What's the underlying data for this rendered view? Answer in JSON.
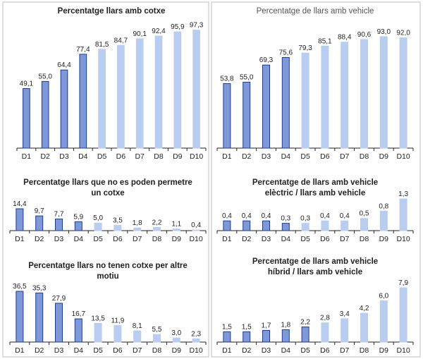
{
  "chart_data": [
    {
      "type": "bar",
      "title_lines": [
        "Percentatge llars amb cotxe"
      ],
      "title_weight": "bold",
      "categories": [
        "D1",
        "D2",
        "D3",
        "D4",
        "D5",
        "D6",
        "D7",
        "D8",
        "D9",
        "D10"
      ],
      "values": [
        49.1,
        55.0,
        64.4,
        77.4,
        81.5,
        84.7,
        90.1,
        92.4,
        95.9,
        97.3
      ],
      "value_labels": [
        "49,1",
        "55,0",
        "64,4",
        "77,4",
        "81,5",
        "84,7",
        "90,1",
        "92,4",
        "95,9",
        "97,3"
      ],
      "highlight_count": 4,
      "ylim": [
        0,
        100
      ]
    },
    {
      "type": "bar",
      "title_lines": [
        "Percentatge de llars amb vehicle"
      ],
      "title_weight": "normal",
      "categories": [
        "D1",
        "D2",
        "D3",
        "D4",
        "D5",
        "D6",
        "D7",
        "D8",
        "D9",
        "D10"
      ],
      "values": [
        53.8,
        55.0,
        69.3,
        75.6,
        79.3,
        85.1,
        88.4,
        90.6,
        93.0,
        92.0
      ],
      "value_labels": [
        "53,8",
        "55,0",
        "69,3",
        "75,6",
        "79,3",
        "85,1",
        "88,4",
        "90,6",
        "93,0",
        "92,0"
      ],
      "highlight_count": 4,
      "ylim": [
        0,
        100
      ]
    },
    {
      "type": "bar",
      "title_lines": [
        "Percentatge llars que no es poden permetre",
        "un cotxe"
      ],
      "title_weight": "bold",
      "categories": [
        "D1",
        "D2",
        "D3",
        "D4",
        "D5",
        "D6",
        "D7",
        "D8",
        "D9",
        "D10"
      ],
      "values": [
        14.4,
        9.7,
        7.7,
        5.9,
        5.0,
        3.5,
        1.8,
        2.2,
        1.1,
        0.4
      ],
      "value_labels": [
        "14,4",
        "9,7",
        "7,7",
        "5,9",
        "5,0",
        "3,5",
        "1,8",
        "2,2",
        "1,1",
        "0,4"
      ],
      "highlight_count": 4,
      "ylim": [
        0,
        14.4
      ]
    },
    {
      "type": "bar",
      "title_lines": [
        "Percentatge de llars amb vehicle",
        "elèctric / llars amb vehicle"
      ],
      "title_weight": "bold",
      "categories": [
        "D1",
        "D2",
        "D3",
        "D4",
        "D5",
        "D6",
        "D7",
        "D8",
        "D9",
        "D10"
      ],
      "values": [
        0.4,
        0.4,
        0.4,
        0.3,
        0.3,
        0.4,
        0.4,
        0.5,
        0.8,
        1.3
      ],
      "value_labels": [
        "0,4",
        "0,4",
        "0,4",
        "0,3",
        "0,3",
        "0,4",
        "0,4",
        "0,5",
        "0,8",
        "1,3"
      ],
      "highlight_count": 4,
      "ylim": [
        0,
        1.3
      ]
    },
    {
      "type": "bar",
      "title_lines": [
        "Percentatge llars no tenen cotxe per altre",
        "motiu"
      ],
      "title_weight": "bold",
      "categories": [
        "D1",
        "D2",
        "D3",
        "D4",
        "D5",
        "D6",
        "D7",
        "D8",
        "D9",
        "D10"
      ],
      "values": [
        36.5,
        35.3,
        27.9,
        16.7,
        13.5,
        11.9,
        8.1,
        5.5,
        3.0,
        2.3
      ],
      "value_labels": [
        "36,5",
        "35,3",
        "27,9",
        "16,7",
        "13,5",
        "11,9",
        "8,1",
        "5,5",
        "3,0",
        "2,3"
      ],
      "highlight_count": 4,
      "ylim": [
        0,
        36.5
      ]
    },
    {
      "type": "bar",
      "title_lines": [
        "Percentatge de llars amb vehicle",
        "híbrid / llars amb vehicle"
      ],
      "title_weight": "bold",
      "categories": [
        "D1",
        "D2",
        "D3",
        "D4",
        "D5",
        "D6",
        "D7",
        "D8",
        "D9",
        "D10"
      ],
      "values": [
        1.5,
        1.5,
        1.7,
        1.8,
        2.2,
        2.8,
        3.4,
        4.2,
        6.0,
        7.9
      ],
      "value_labels": [
        "1,5",
        "1,5",
        "1,7",
        "1,8",
        "2,2",
        "2,8",
        "3,4",
        "4,2",
        "6,0",
        "7,9"
      ],
      "highlight_count": 5,
      "ylim": [
        0,
        7.9
      ]
    }
  ],
  "colors": {
    "dark_fill": "#7f98d8",
    "dark_stroke": "#1f3b8c",
    "light_fill": "#b9cdf1",
    "axis": "#222222",
    "panel_border": "#bfbfbf"
  }
}
